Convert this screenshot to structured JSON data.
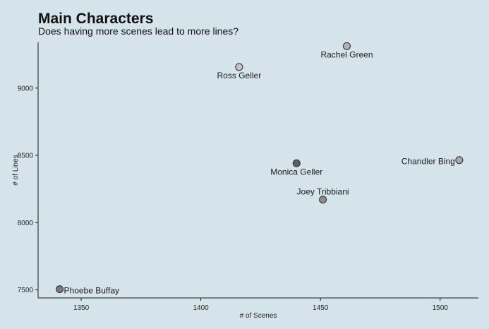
{
  "chart_data": {
    "type": "scatter",
    "title": "Main Characters",
    "subtitle": "Does having more scenes lead to more lines?",
    "xlabel": "# of Scenes",
    "ylabel": "# of Lines",
    "xlim": [
      1332,
      1516
    ],
    "ylim": [
      7440,
      9340
    ],
    "x_ticks": [
      1350,
      1400,
      1450,
      1500
    ],
    "y_ticks": [
      7500,
      8000,
      8500,
      9000
    ],
    "grid": false,
    "points": [
      {
        "label": "Rachel Green",
        "x": 1461,
        "y": 9312,
        "color": "#b3b3b3",
        "label_pos": "below"
      },
      {
        "label": "Ross Geller",
        "x": 1416,
        "y": 9157,
        "color": "#c4c4c4",
        "label_pos": "below"
      },
      {
        "label": "Monica Geller",
        "x": 1440,
        "y": 8441,
        "color": "#5f5f5f",
        "label_pos": "below"
      },
      {
        "label": "Chandler Bing",
        "x": 1508,
        "y": 8465,
        "color": "#a8a8a8",
        "label_pos": "left"
      },
      {
        "label": "Joey Tribbiani",
        "x": 1451,
        "y": 8171,
        "color": "#8e8e8e",
        "label_pos": "above"
      },
      {
        "label": "Phoebe Buffay",
        "x": 1341,
        "y": 7505,
        "color": "#7a7a7a",
        "label_pos": "right"
      }
    ]
  }
}
